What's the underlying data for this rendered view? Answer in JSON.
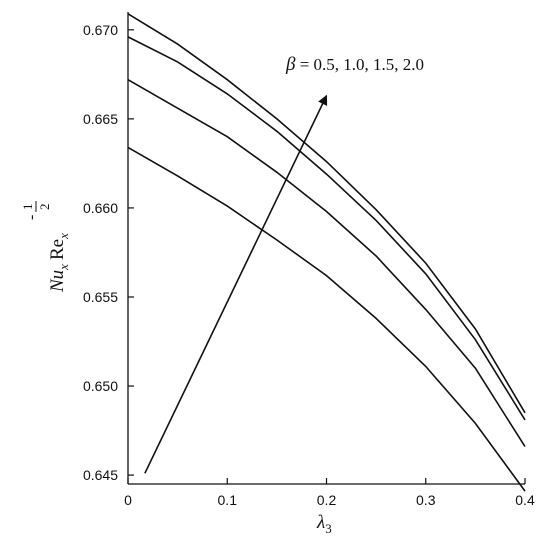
{
  "chart_data": {
    "type": "line",
    "title": "",
    "xlabel_main": "λ",
    "xlabel_sub": "3",
    "ylabel": {
      "nu": "Nu",
      "nu_sub": "x",
      "re": "Re",
      "re_sub": "x",
      "exp_sign": "-",
      "exp_num": "1",
      "exp_den": "2"
    },
    "xlim": [
      0,
      0.4
    ],
    "ylim": [
      0.6445,
      0.671
    ],
    "xticks": [
      "0",
      "0.1",
      "0.2",
      "0.3",
      "0.4"
    ],
    "yticks": [
      "0.645",
      "0.650",
      "0.655",
      "0.660",
      "0.665",
      "0.670"
    ],
    "x": [
      0,
      0.05,
      0.1,
      0.15,
      0.2,
      0.25,
      0.3,
      0.35,
      0.4
    ],
    "series": [
      {
        "values": [
          0.6634,
          0.6618,
          0.6601,
          0.6582,
          0.6562,
          0.6538,
          0.6511,
          0.6479,
          0.6441
        ]
      },
      {
        "values": [
          0.6672,
          0.6656,
          0.664,
          0.662,
          0.6598,
          0.6573,
          0.6543,
          0.651,
          0.6466
        ]
      },
      {
        "values": [
          0.6696,
          0.6682,
          0.6664,
          0.6643,
          0.6619,
          0.6593,
          0.6563,
          0.6526,
          0.6481
        ]
      },
      {
        "values": [
          0.6709,
          0.6692,
          0.6672,
          0.665,
          0.6626,
          0.6599,
          0.6569,
          0.6532,
          0.6485
        ]
      }
    ],
    "annotation": {
      "symbol": "β",
      "text": " = 0.5, 1.0, 1.5, 2.0",
      "arrow_from": [
        0.017,
        0.6451
      ],
      "arrow_to": [
        0.2,
        0.6663
      ]
    },
    "grid": false,
    "legend": "none"
  }
}
